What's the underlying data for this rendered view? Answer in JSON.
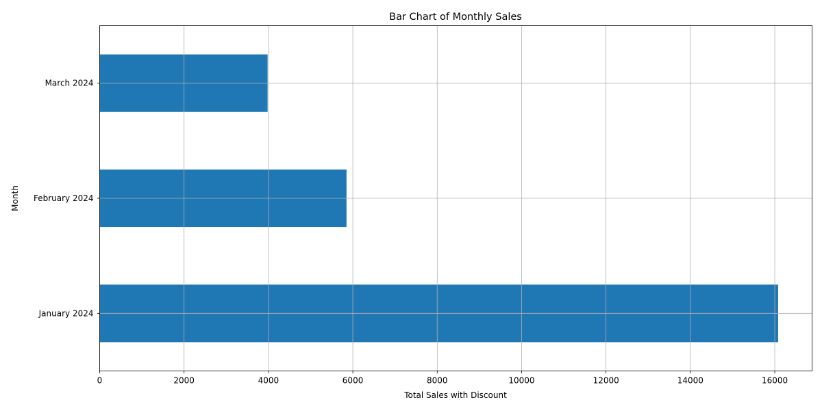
{
  "chart_data": {
    "type": "bar",
    "orientation": "horizontal",
    "title": "Bar Chart of Monthly Sales",
    "xlabel": "Total Sales with Discount",
    "ylabel": "Month",
    "categories": [
      "January 2024",
      "February 2024",
      "March 2024"
    ],
    "values": [
      16080,
      5850,
      3980
    ],
    "xlim": [
      0,
      16884
    ],
    "xticks": [
      0,
      2000,
      4000,
      6000,
      8000,
      10000,
      12000,
      14000,
      16000
    ],
    "xtick_labels": [
      "0",
      "2000",
      "4000",
      "6000",
      "8000",
      "10000",
      "12000",
      "14000",
      "16000"
    ],
    "grid": true,
    "bar_color": "#1f77b4",
    "grid_color": "#b0b0b0"
  }
}
